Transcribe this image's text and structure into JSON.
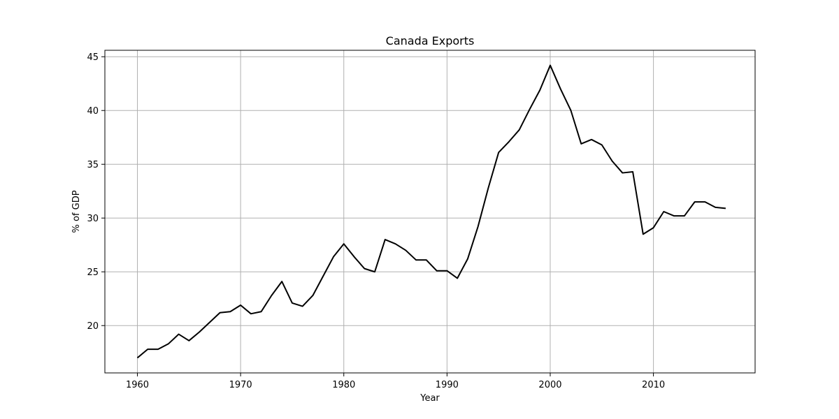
{
  "chart_data": {
    "type": "line",
    "title": "Canada Exports",
    "xlabel": "Year",
    "ylabel": "% of GDP",
    "xlim": [
      1956.85,
      2019.85
    ],
    "ylim": [
      15.6,
      45.6
    ],
    "x_ticks": [
      1960,
      1970,
      1980,
      1990,
      2000,
      2010
    ],
    "y_ticks": [
      20,
      25,
      30,
      35,
      40,
      45
    ],
    "grid": true,
    "line_color": "#000000",
    "grid_color": "#b0b0b0",
    "series": [
      {
        "x": [
          1960,
          1961,
          1962,
          1963,
          1964,
          1965,
          1966,
          1967,
          1968,
          1969,
          1970,
          1971,
          1972,
          1973,
          1974,
          1975,
          1976,
          1977,
          1978,
          1979,
          1980,
          1981,
          1982,
          1983,
          1984,
          1985,
          1986,
          1987,
          1988,
          1989,
          1990,
          1991,
          1992,
          1993,
          1994,
          1995,
          1996,
          1997,
          1998,
          1999,
          2000,
          2001,
          2002,
          2003,
          2004,
          2005,
          2006,
          2007,
          2008,
          2009,
          2010,
          2011,
          2012,
          2013,
          2014,
          2015,
          2016,
          2017
        ],
        "values": [
          17.0,
          17.8,
          17.8,
          18.3,
          19.2,
          18.6,
          19.4,
          20.3,
          21.2,
          21.3,
          21.9,
          21.1,
          21.3,
          22.8,
          24.1,
          22.1,
          21.8,
          22.8,
          24.6,
          26.4,
          27.6,
          26.4,
          25.3,
          25.0,
          28.0,
          27.6,
          27.0,
          26.1,
          26.1,
          25.1,
          25.1,
          24.4,
          26.2,
          29.2,
          32.8,
          36.1,
          37.1,
          38.2,
          40.1,
          41.9,
          44.2,
          42.0,
          40.0,
          36.9,
          37.3,
          36.8,
          35.3,
          34.2,
          34.3,
          28.5,
          29.1,
          30.6,
          30.2,
          30.2,
          31.5,
          31.5,
          31.0,
          30.9
        ]
      }
    ]
  }
}
